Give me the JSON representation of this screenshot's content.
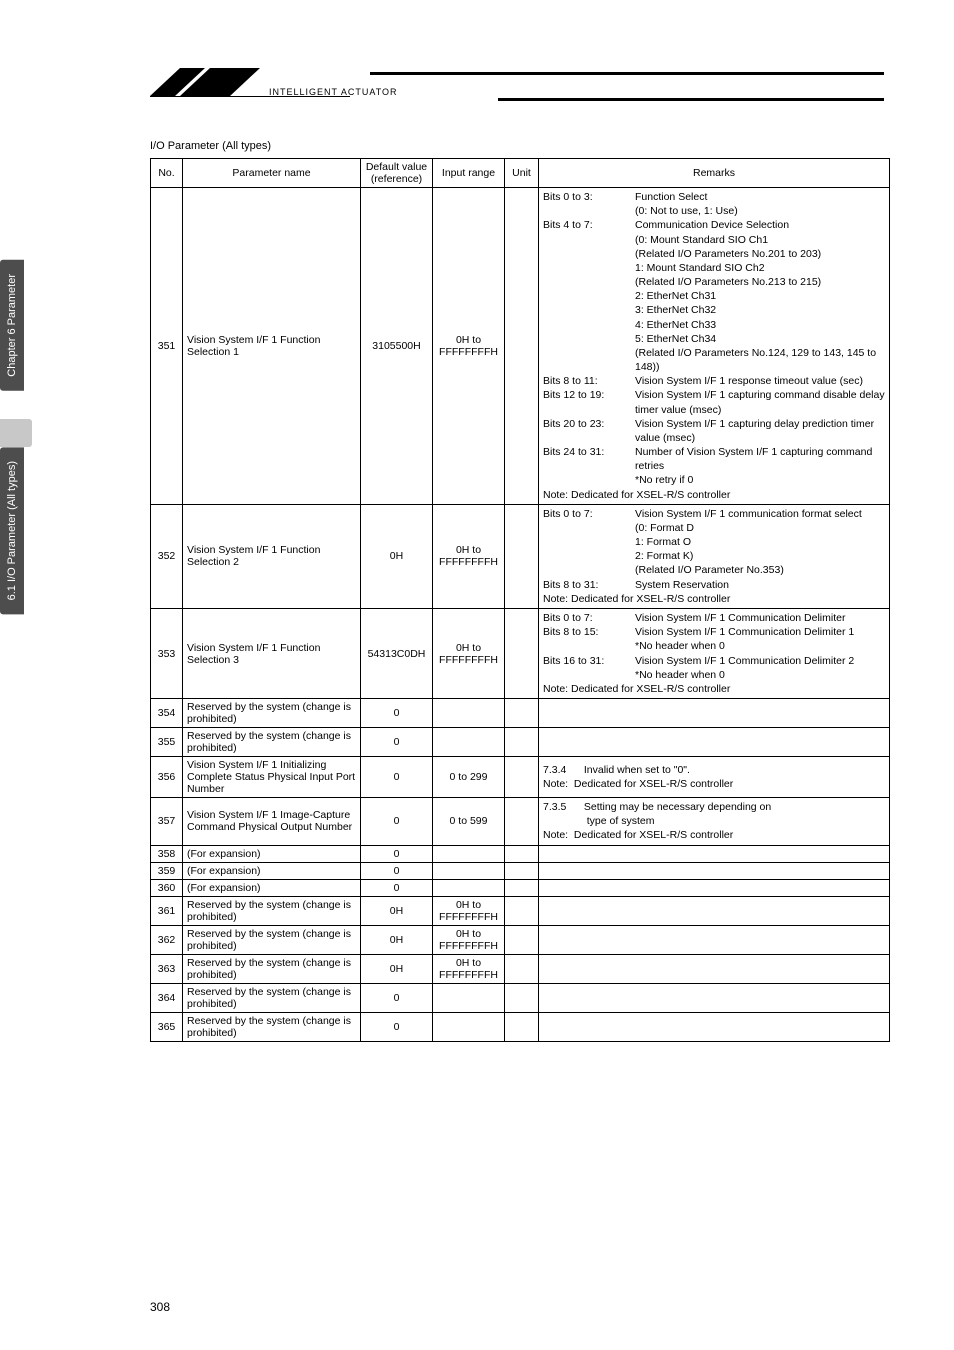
{
  "logo_text": "INTELLIGENT ACTUATOR",
  "side_tab_1": "Chapter 6 Parameter",
  "side_tab_2": "6.1 I/O Parameter (All types)",
  "caption": "I/O Parameter (All types)",
  "headers": {
    "no": "No.",
    "name": "Parameter name",
    "def": "Default value (reference)",
    "range": "Input range",
    "unit": "Unit",
    "remarks": "Remarks"
  },
  "rows": [
    {
      "no": "351",
      "name": "Vision System I/F 1 Function Selection 1",
      "def": "3105500H",
      "range": "0H to FFFFFFFFH",
      "unit": "",
      "bits": [
        {
          "label": "Bits 0 to 3:",
          "text": "Function Select<br>(0: Not to use, 1: Use)"
        },
        {
          "label": "Bits 4 to 7:",
          "text": "Communication Device Selection<br>(0: Mount Standard SIO Ch1<br>(Related I/O Parameters No.201 to 203)<br>1: Mount Standard SIO Ch2<br>(Related I/O Parameters No.213 to 215)<br>2: EtherNet Ch31<br>3: EtherNet Ch32<br>4: EtherNet Ch33<br>5: EtherNet Ch34<br>(Related I/O Parameters No.124, 129 to 143, 145 to 148))"
        },
        {
          "label": "Bits 8 to 11:",
          "text": "Vision System I/F 1 response timeout value (sec)"
        },
        {
          "label": "Bits 12 to 19:",
          "text": "Vision System I/F 1 capturing command disable delay timer value (msec)"
        },
        {
          "label": "Bits 20 to 23:",
          "text": "Vision System I/F 1 capturing delay prediction timer value (msec)"
        },
        {
          "label": "Bits 24 to 31:",
          "text": "Number of Vision System I/F 1 capturing command retries<br>*No retry if 0"
        }
      ],
      "note": "Note:  Dedicated for XSEL-R/S controller"
    },
    {
      "no": "352",
      "name": "Vision System I/F 1 Function Selection 2",
      "def": "0H",
      "range": "0H to FFFFFFFFH",
      "unit": "",
      "bits": [
        {
          "label": "Bits 0 to 7:",
          "text": "Vision System I/F 1 communication format select<br>(0: Format D<br>1: Format O<br>2: Format K)<br>(Related I/O Parameter No.353)"
        },
        {
          "label": "Bits 8 to 31:",
          "text": "System Reservation"
        }
      ],
      "note": "Note:  Dedicated for XSEL-R/S controller"
    },
    {
      "no": "353",
      "name": "Vision System I/F 1 Function Selection 3",
      "def": "54313C0DH",
      "range": "0H to FFFFFFFFH",
      "unit": "",
      "bits": [
        {
          "label": "Bits 0 to 7:",
          "text": "Vision System I/F 1 Communication Delimiter"
        },
        {
          "label": "Bits 8 to 15:",
          "text": "Vision System I/F 1 Communication Delimiter 1<br>*No header when 0"
        },
        {
          "label": "Bits 16 to 31:",
          "text": "Vision System I/F 1 Communication Delimiter 2<br>*No header when 0"
        }
      ],
      "note": "Note:  Dedicated for XSEL-R/S controller"
    },
    {
      "no": "354",
      "name": "Reserved by the system (change is prohibited)",
      "def": "0",
      "range": "",
      "unit": "",
      "remarks_plain": ""
    },
    {
      "no": "355",
      "name": "Reserved by the system (change is prohibited)",
      "def": "0",
      "range": "",
      "unit": "",
      "remarks_plain": ""
    },
    {
      "no": "356",
      "name": "Vision System I/F 1 Initializing Complete Status Physical Input Port Number",
      "def": "0",
      "range": "0 to 299",
      "unit": "",
      "remarks_plain": "7.3.4&nbsp;&nbsp;&nbsp;&nbsp;&nbsp;&nbsp;Invalid when set to \"0\".<br>Note:&nbsp;&nbsp;Dedicated for XSEL-R/S controller"
    },
    {
      "no": "357",
      "name": "Vision System I/F 1 Image-Capture Command Physical Output Number",
      "def": "0",
      "range": "0 to 599",
      "unit": "",
      "remarks_plain": "7.3.5&nbsp;&nbsp;&nbsp;&nbsp;&nbsp;&nbsp;Setting may be necessary depending on<br>&nbsp;&nbsp;&nbsp;&nbsp;&nbsp;&nbsp;&nbsp;&nbsp;&nbsp;&nbsp;&nbsp;&nbsp;&nbsp;&nbsp;&nbsp;type of system<br>Note:&nbsp;&nbsp;Dedicated for XSEL-R/S controller"
    },
    {
      "no": "358",
      "name": "(For expansion)",
      "def": "0",
      "range": "",
      "unit": "",
      "remarks_plain": ""
    },
    {
      "no": "359",
      "name": "(For expansion)",
      "def": "0",
      "range": "",
      "unit": "",
      "remarks_plain": ""
    },
    {
      "no": "360",
      "name": "(For expansion)",
      "def": "0",
      "range": "",
      "unit": "",
      "remarks_plain": ""
    },
    {
      "no": "361",
      "name": "Reserved by the system (change is prohibited)",
      "def": "0H",
      "range": "0H to FFFFFFFFH",
      "unit": "",
      "remarks_plain": ""
    },
    {
      "no": "362",
      "name": "Reserved by the system (change is prohibited)",
      "def": "0H",
      "range": "0H to FFFFFFFFH",
      "unit": "",
      "remarks_plain": ""
    },
    {
      "no": "363",
      "name": "Reserved by the system (change is prohibited)",
      "def": "0H",
      "range": "0H to FFFFFFFFH",
      "unit": "",
      "remarks_plain": ""
    },
    {
      "no": "364",
      "name": "Reserved by the system (change is prohibited)",
      "def": "0",
      "range": "",
      "unit": "",
      "remarks_plain": ""
    },
    {
      "no": "365",
      "name": "Reserved by the system (change is prohibited)",
      "def": "0",
      "range": "",
      "unit": "",
      "remarks_plain": ""
    }
  ],
  "page_number": "308"
}
